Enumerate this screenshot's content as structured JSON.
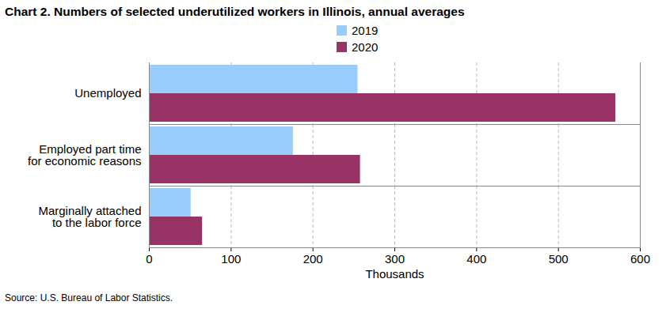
{
  "chart_data": {
    "type": "bar",
    "title": "Chart 2. Numbers of selected underutilized workers in Illinois, annual averages",
    "orientation": "horizontal",
    "categories": [
      "Unemployed",
      "Employed part time\nfor economic reasons",
      "Marginally attached\nto the labor force"
    ],
    "series": [
      {
        "name": "2019",
        "color": "#99ccff",
        "values": [
          255,
          176,
          51
        ]
      },
      {
        "name": "2020",
        "color": "#993366",
        "values": [
          570,
          258,
          65
        ]
      }
    ],
    "xlabel": "Thousands",
    "xlim": [
      0,
      600
    ],
    "xticks": [
      0,
      100,
      200,
      300,
      400,
      500,
      600
    ],
    "grid": true,
    "legend": "top",
    "source": "Source: U.S. Bureau of Labor Statistics."
  }
}
